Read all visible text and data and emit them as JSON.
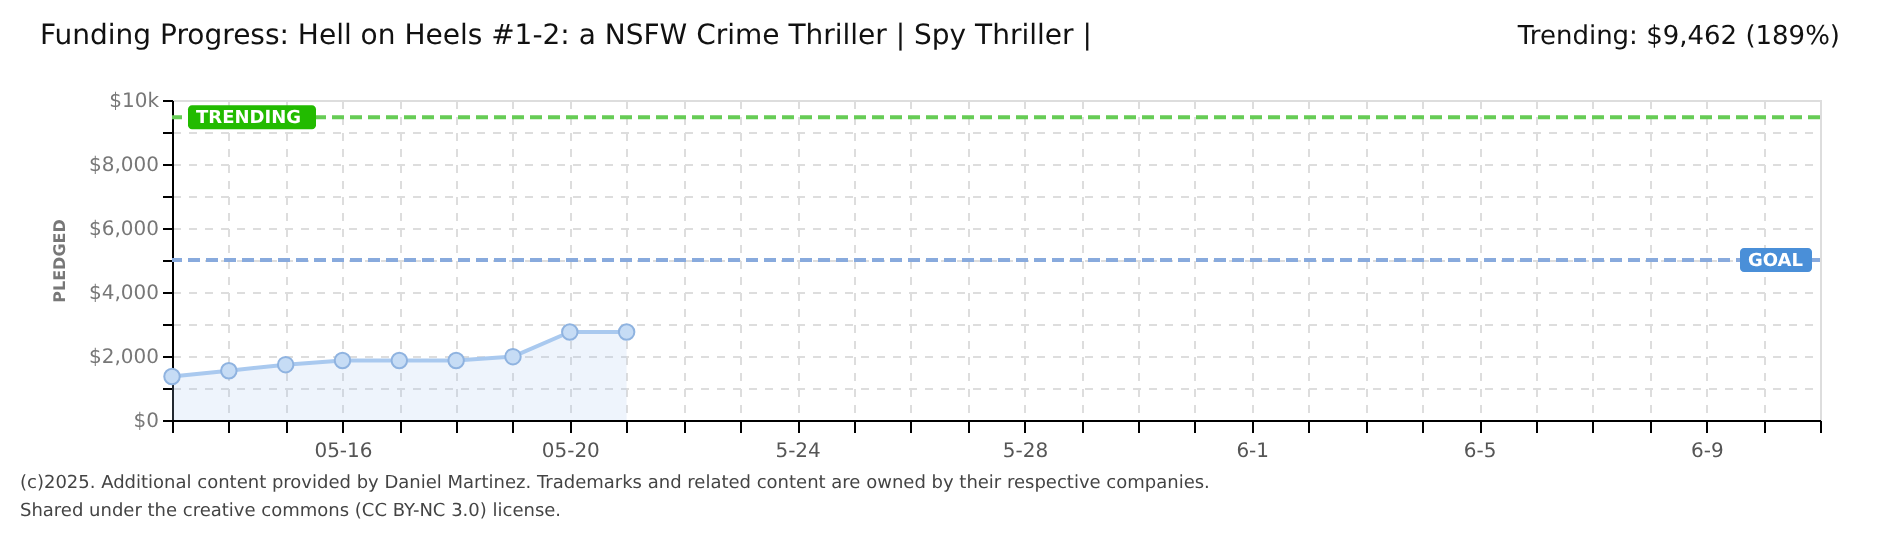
{
  "chart_data": {
    "type": "area",
    "title": "Funding Progress: Hell on Heels #1-2: a NSFW Crime Thriller | Spy Thriller |",
    "ylabel": "PLEDGED",
    "x": [
      "2025-05-13",
      "2025-05-14",
      "2025-05-15",
      "2025-05-16",
      "2025-05-17",
      "2025-05-18",
      "2025-05-19",
      "2025-05-20",
      "2025-05-21"
    ],
    "series": [
      {
        "color": "#a9c9ef",
        "values": [
          1360,
          1540,
          1730,
          1860,
          1860,
          1860,
          1980,
          2750,
          2750
        ]
      }
    ],
    "xlim": [
      "2025-05-13",
      "2025-06-11"
    ],
    "xticks": [
      {
        "value": "2025-05-13",
        "label": null
      },
      {
        "value": "2025-05-14",
        "label": null
      },
      {
        "value": "2025-05-15",
        "label": null
      },
      {
        "value": "2025-05-16",
        "label": "05-16"
      },
      {
        "value": "2025-05-17",
        "label": null
      },
      {
        "value": "2025-05-18",
        "label": null
      },
      {
        "value": "2025-05-19",
        "label": null
      },
      {
        "value": "2025-05-20",
        "label": "05-20"
      },
      {
        "value": "2025-05-21",
        "label": null
      },
      {
        "value": "2025-05-22",
        "label": null
      },
      {
        "value": "2025-05-23",
        "label": null
      },
      {
        "value": "2025-05-24",
        "label": "5-24"
      },
      {
        "value": "2025-05-25",
        "label": null
      },
      {
        "value": "2025-05-26",
        "label": null
      },
      {
        "value": "2025-05-27",
        "label": null
      },
      {
        "value": "2025-05-28",
        "label": "5-28"
      },
      {
        "value": "2025-05-29",
        "label": null
      },
      {
        "value": "2025-05-30",
        "label": null
      },
      {
        "value": "2025-05-31",
        "label": null
      },
      {
        "value": "2025-06-01",
        "label": "6-1"
      },
      {
        "value": "2025-06-02",
        "label": null
      },
      {
        "value": "2025-06-03",
        "label": null
      },
      {
        "value": "2025-06-04",
        "label": null
      },
      {
        "value": "2025-06-05",
        "label": "6-5"
      },
      {
        "value": "2025-06-06",
        "label": null
      },
      {
        "value": "2025-06-07",
        "label": null
      },
      {
        "value": "2025-06-08",
        "label": null
      },
      {
        "value": "2025-06-09",
        "label": "6-9"
      },
      {
        "value": "2025-06-10",
        "label": null
      },
      {
        "value": "2025-06-11",
        "label": null
      }
    ],
    "ylim": [
      0,
      10000
    ],
    "yticks": [
      {
        "value": 0,
        "label": "$0"
      },
      {
        "value": 1000,
        "label": null
      },
      {
        "value": 2000,
        "label": "$2,000"
      },
      {
        "value": 3000,
        "label": null
      },
      {
        "value": 4000,
        "label": "$4,000"
      },
      {
        "value": 5000,
        "label": null
      },
      {
        "value": 6000,
        "label": "$6,000"
      },
      {
        "value": 7000,
        "label": null
      },
      {
        "value": 8000,
        "label": "$8,000"
      },
      {
        "value": 9000,
        "label": null
      },
      {
        "value": 10000,
        "label": "$10k"
      }
    ],
    "ref_lines": [
      {
        "axis": "y",
        "value": 9462,
        "label": "TRENDING",
        "color": "#66cc55",
        "line_style": "dashed"
      },
      {
        "axis": "y",
        "value": 5000,
        "label": "GOAL",
        "color": "#88aadd",
        "line_style": "dashed"
      }
    ],
    "annotations": [
      "Trending: $9,462 (189%)",
      "(c)2025. Additional content provided by Daniel Martinez. Trademarks and related content are owned by their respective companies.",
      "Shared under the creative commons (CC BY-NC 3.0) license."
    ],
    "grid": true,
    "marker": "circle",
    "line_style": "solid"
  }
}
